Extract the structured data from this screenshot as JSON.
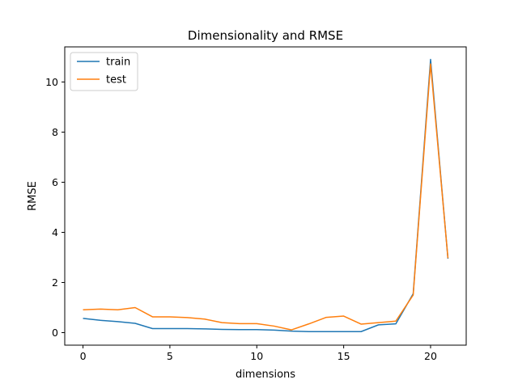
{
  "chart_data": {
    "type": "line",
    "title": "Dimensionality and RMSE",
    "xlabel": "dimensions",
    "ylabel": "RMSE",
    "xlim": [
      -1.05,
      22.05
    ],
    "ylim": [
      -0.5,
      11.4
    ],
    "xticks": [
      0,
      5,
      10,
      15,
      20
    ],
    "yticks": [
      0,
      2,
      4,
      6,
      8,
      10
    ],
    "grid": false,
    "legend_position": "top-left",
    "x": [
      0,
      1,
      2,
      3,
      4,
      5,
      6,
      7,
      8,
      9,
      10,
      11,
      12,
      13,
      14,
      15,
      16,
      17,
      18,
      19,
      20,
      21
    ],
    "series": [
      {
        "name": "train",
        "color": "#1f77b4",
        "values": [
          0.57,
          0.49,
          0.44,
          0.37,
          0.16,
          0.16,
          0.16,
          0.15,
          0.13,
          0.12,
          0.12,
          0.1,
          0.06,
          0.04,
          0.04,
          0.04,
          0.04,
          0.31,
          0.35,
          1.55,
          10.9,
          2.95
        ]
      },
      {
        "name": "test",
        "color": "#ff7f0e",
        "values": [
          0.91,
          0.94,
          0.91,
          1.0,
          0.63,
          0.63,
          0.6,
          0.54,
          0.4,
          0.36,
          0.36,
          0.26,
          0.11,
          0.35,
          0.61,
          0.66,
          0.34,
          0.4,
          0.46,
          1.5,
          10.72,
          2.97
        ]
      }
    ]
  }
}
